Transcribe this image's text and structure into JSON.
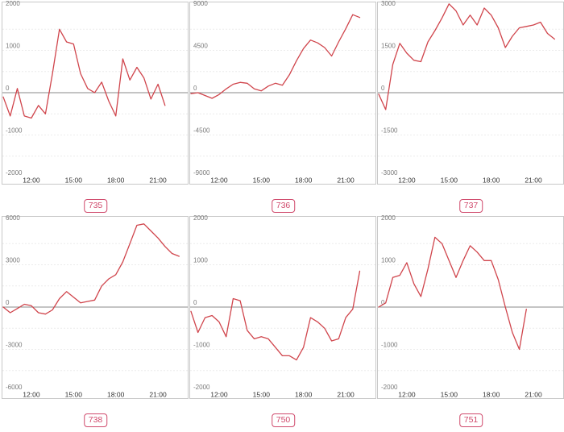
{
  "colors": {
    "line": "#d0454c",
    "badge": "#d04a6c"
  },
  "chart_data": [
    {
      "type": "line",
      "badge": "735",
      "x_ticks": [
        "12:00",
        "15:00",
        "18:00",
        "21:00"
      ],
      "ylim": [
        -2000,
        2000
      ],
      "yticks": [
        2000,
        1000,
        0,
        -1000,
        -2000
      ],
      "x": [
        "10:00",
        "10:30",
        "11:00",
        "11:30",
        "12:00",
        "12:30",
        "13:00",
        "13:30",
        "14:00",
        "14:30",
        "15:00",
        "15:30",
        "16:00",
        "16:30",
        "17:00",
        "17:30",
        "18:00",
        "18:30",
        "19:00",
        "19:30",
        "20:00",
        "20:30",
        "21:00",
        "21:30"
      ],
      "series": [
        {
          "values": [
            -100,
            -550,
            100,
            -550,
            -600,
            -300,
            -500,
            450,
            1500,
            1200,
            1150,
            450,
            100,
            0,
            250,
            -200,
            -550,
            800,
            300,
            600,
            350,
            -150,
            200,
            -300
          ]
        }
      ]
    },
    {
      "type": "line",
      "badge": "736",
      "x_ticks": [
        "12:00",
        "15:00",
        "18:00",
        "21:00"
      ],
      "ylim": [
        -9000,
        9000
      ],
      "yticks": [
        9000,
        4500,
        0,
        -4500,
        -9000
      ],
      "x": [
        "10:00",
        "10:30",
        "11:00",
        "11:30",
        "12:00",
        "12:30",
        "13:00",
        "13:30",
        "14:00",
        "14:30",
        "15:00",
        "15:30",
        "16:00",
        "16:30",
        "17:00",
        "17:30",
        "18:00",
        "18:30",
        "19:00",
        "19:30",
        "20:00",
        "20:30",
        "21:00",
        "21:30",
        "22:00"
      ],
      "series": [
        {
          "values": [
            -100,
            0,
            -300,
            -600,
            -200,
            400,
            900,
            1100,
            1000,
            400,
            200,
            700,
            1000,
            800,
            1900,
            3400,
            4700,
            5600,
            5300,
            4800,
            3900,
            5400,
            6800,
            8300,
            8000
          ]
        }
      ]
    },
    {
      "type": "line",
      "badge": "737",
      "x_ticks": [
        "12:00",
        "15:00",
        "18:00",
        "21:00"
      ],
      "ylim": [
        -3000,
        3000
      ],
      "yticks": [
        3000,
        1500,
        0,
        -1500,
        -3000
      ],
      "x": [
        "10:00",
        "10:30",
        "11:00",
        "11:30",
        "12:00",
        "12:30",
        "13:00",
        "13:30",
        "14:00",
        "14:30",
        "15:00",
        "15:30",
        "16:00",
        "16:30",
        "17:00",
        "17:30",
        "18:00",
        "18:30",
        "19:00",
        "19:30",
        "20:00",
        "20:30",
        "21:00",
        "21:30",
        "22:00",
        "22:30"
      ],
      "series": [
        {
          "values": [
            -50,
            -600,
            1000,
            1750,
            1400,
            1150,
            1100,
            1800,
            2200,
            2650,
            3150,
            2900,
            2400,
            2750,
            2400,
            3000,
            2750,
            2300,
            1600,
            2000,
            2300,
            2350,
            2400,
            2500,
            2100,
            1900
          ]
        }
      ]
    },
    {
      "type": "line",
      "badge": "738",
      "x_ticks": [
        "12:00",
        "15:00",
        "18:00",
        "21:00"
      ],
      "ylim": [
        -6000,
        6000
      ],
      "yticks": [
        6000,
        3000,
        0,
        -3000,
        -6000
      ],
      "x": [
        "10:00",
        "10:30",
        "11:00",
        "11:30",
        "12:00",
        "12:30",
        "13:00",
        "13:30",
        "14:00",
        "14:30",
        "15:00",
        "15:30",
        "16:00",
        "16:30",
        "17:00",
        "17:30",
        "18:00",
        "18:30",
        "19:00",
        "19:30",
        "20:00",
        "20:30",
        "21:00",
        "21:30",
        "22:00",
        "22:30"
      ],
      "series": [
        {
          "values": [
            0,
            -400,
            -100,
            200,
            100,
            -400,
            -500,
            -200,
            600,
            1100,
            700,
            300,
            400,
            500,
            1500,
            2000,
            2300,
            3200,
            4500,
            5800,
            5900,
            5400,
            4900,
            4300,
            3800,
            3600
          ]
        }
      ]
    },
    {
      "type": "line",
      "badge": "750",
      "x_ticks": [
        "12:00",
        "15:00",
        "18:00",
        "21:00"
      ],
      "ylim": [
        -2000,
        2000
      ],
      "yticks": [
        2000,
        1000,
        0,
        -1000,
        -2000
      ],
      "x": [
        "10:00",
        "10:30",
        "11:00",
        "11:30",
        "12:00",
        "12:30",
        "13:00",
        "13:30",
        "14:00",
        "14:30",
        "15:00",
        "15:30",
        "16:00",
        "16:30",
        "17:00",
        "17:30",
        "18:00",
        "18:30",
        "19:00",
        "19:30",
        "20:00",
        "20:30",
        "21:00",
        "21:30",
        "22:00"
      ],
      "series": [
        {
          "values": [
            -100,
            -600,
            -250,
            -200,
            -350,
            -700,
            200,
            150,
            -550,
            -750,
            -700,
            -750,
            -950,
            -1150,
            -1150,
            -1250,
            -950,
            -250,
            -350,
            -500,
            -800,
            -750,
            -250,
            -50,
            850
          ]
        }
      ]
    },
    {
      "type": "line",
      "badge": "751",
      "x_ticks": [
        "12:00",
        "15:00",
        "18:00",
        "21:00"
      ],
      "ylim": [
        -2000,
        2000
      ],
      "yticks": [
        2000,
        1000,
        0,
        -1000,
        -2000
      ],
      "x": [
        "10:00",
        "10:30",
        "11:00",
        "11:30",
        "12:00",
        "12:30",
        "13:00",
        "13:30",
        "14:00",
        "14:30",
        "15:00",
        "15:30",
        "16:00",
        "16:30",
        "17:00",
        "17:30",
        "18:00",
        "18:30",
        "19:00",
        "19:30",
        "20:00",
        "20:30"
      ],
      "series": [
        {
          "values": [
            0,
            100,
            700,
            750,
            1050,
            550,
            250,
            900,
            1650,
            1500,
            1100,
            700,
            1100,
            1450,
            1300,
            1100,
            1100,
            650,
            0,
            -600,
            -1000,
            -50
          ]
        }
      ]
    }
  ]
}
